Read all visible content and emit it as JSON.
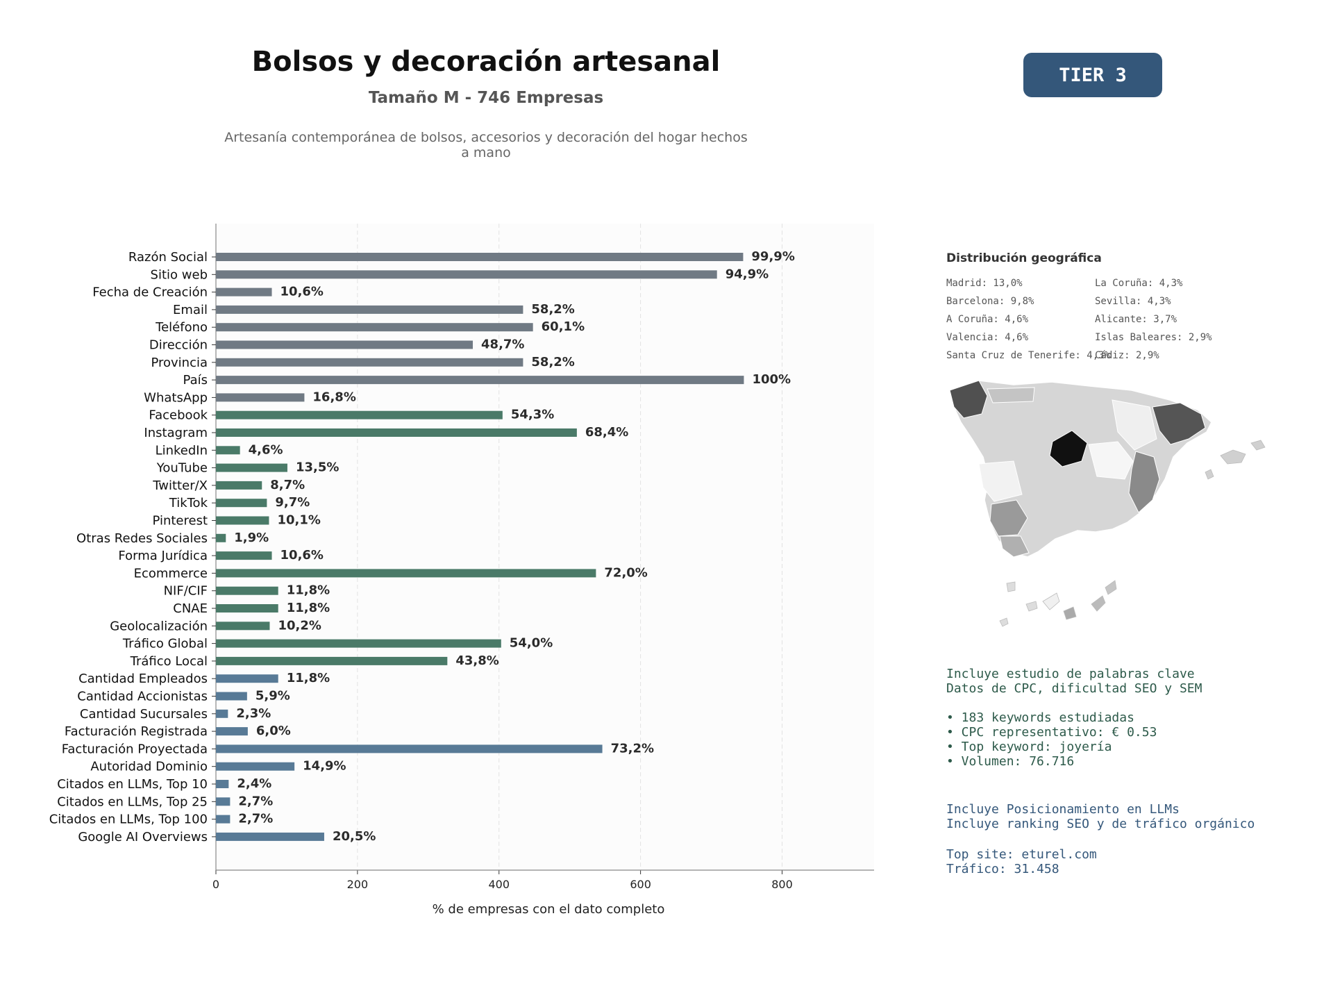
{
  "header": {
    "title": "Bolsos y decoración artesanal",
    "subtitle": "Tamaño M - 746 Empresas",
    "description": "Artesanía contemporánea de bolsos, accesorios y decoración del hogar hechos a mano",
    "tier": "TIER 3"
  },
  "colors": {
    "gray": "#707a84",
    "green": "#4a7a68",
    "blue": "#587a96",
    "badge": "#34577a",
    "text_green": "#2d5a4a",
    "text_blue": "#34577a"
  },
  "chart_data": {
    "type": "bar",
    "orientation": "horizontal",
    "xlabel": "% de empresas con el dato completo",
    "xlim": [
      0,
      930
    ],
    "xticks": [
      0,
      200,
      400,
      600,
      800
    ],
    "grid": true,
    "categories": [
      "Razón Social",
      "Sitio web",
      "Fecha de Creación",
      "Email",
      "Teléfono",
      "Dirección",
      "Provincia",
      "País",
      "WhatsApp",
      "Facebook",
      "Instagram",
      "LinkedIn",
      "YouTube",
      "Twitter/X",
      "TikTok",
      "Pinterest",
      "Otras Redes Sociales",
      "Forma Jurídica",
      "Ecommerce",
      "NIF/CIF",
      "CNAE",
      "Geolocalización",
      "Tráfico Global",
      "Tráfico Local",
      "Cantidad Empleados",
      "Cantidad Accionistas",
      "Cantidad Sucursales",
      "Facturación Registrada",
      "Facturación Proyectada",
      "Autoridad Dominio",
      "Citados en LLMs, Top 10",
      "Citados en LLMs, Top 25",
      "Citados en LLMs, Top 100",
      "Google AI Overviews"
    ],
    "values": [
      745,
      708,
      79,
      434,
      448,
      363,
      434,
      746,
      125,
      405,
      510,
      34,
      101,
      65,
      72,
      75,
      14,
      79,
      537,
      88,
      88,
      76,
      403,
      327,
      88,
      44,
      17,
      45,
      546,
      111,
      18,
      20,
      20,
      153
    ],
    "labels": [
      "99,9%",
      "94,9%",
      "10,6%",
      "58,2%",
      "60,1%",
      "48,7%",
      "58,2%",
      "100%",
      "16,8%",
      "54,3%",
      "68,4%",
      "4,6%",
      "13,5%",
      "8,7%",
      "9,7%",
      "10,1%",
      "1,9%",
      "10,6%",
      "72,0%",
      "11,8%",
      "11,8%",
      "10,2%",
      "54,0%",
      "43,8%",
      "11,8%",
      "5,9%",
      "2,3%",
      "6,0%",
      "73,2%",
      "14,9%",
      "2,4%",
      "2,7%",
      "2,7%",
      "20,5%"
    ],
    "groups": [
      "gray",
      "gray",
      "gray",
      "gray",
      "gray",
      "gray",
      "gray",
      "gray",
      "gray",
      "green",
      "green",
      "green",
      "green",
      "green",
      "green",
      "green",
      "green",
      "green",
      "green",
      "green",
      "green",
      "green",
      "green",
      "green",
      "blue",
      "blue",
      "blue",
      "blue",
      "blue",
      "blue",
      "blue",
      "blue",
      "blue",
      "blue"
    ]
  },
  "geo": {
    "title": "Distribución geográfica",
    "col1": [
      "Madrid: 13,0%",
      "Barcelona: 9,8%",
      "A Coruña: 4,6%",
      "Valencia: 4,6%",
      "Santa Cruz de Tenerife: 4,3%"
    ],
    "col2": [
      "La Coruña: 4,3%",
      "Sevilla: 4,3%",
      "Alicante: 3,7%",
      "Islas Baleares: 2,9%",
      "Cádiz: 2,9%"
    ]
  },
  "keywords": {
    "line1": "Incluye estudio de palabras clave",
    "line2": "Datos de CPC, dificultad SEO y SEM",
    "bullets": [
      "• 183 keywords estudiadas",
      "• CPC representativo: € 0.53",
      "• Top keyword: joyería",
      "• Volumen: 76.716"
    ]
  },
  "llm": {
    "line1": "Incluye Posicionamiento en LLMs",
    "line2": "Incluye ranking SEO y de tráfico orgánico",
    "top_site": "Top site: eturel.com",
    "traffic": "Tráfico: 31.458"
  }
}
